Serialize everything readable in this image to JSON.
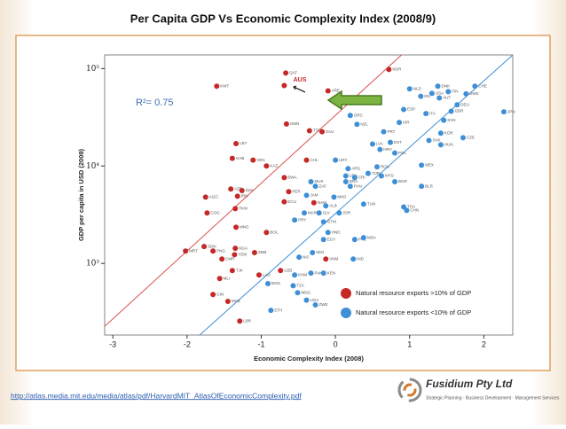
{
  "chart_data": {
    "type": "scatter",
    "title": "Per Capita GDP Vs Economic Complexity Index (2008/9)",
    "x_label": "Economic Complexity Index (2008)",
    "y_label": "GDP per capita in USD (2009)",
    "xlim": [
      -3.11,
      2.39
    ],
    "xticks": [
      -3,
      -2,
      -1,
      0,
      1,
      2
    ],
    "ylim": [
      184,
      138000
    ],
    "log_y": true,
    "yticks": [
      {
        "value": 1000,
        "label": "10³"
      },
      {
        "value": 10000,
        "label": "10⁴"
      },
      {
        "value": 100000,
        "label": "10⁵"
      }
    ],
    "legend": "lower right",
    "series": [
      {
        "name": "Natural resource exports >10% of GDP",
        "color": "#c62828",
        "labels": [
          "QAT",
          "NOR",
          "KWT",
          null,
          "ARE",
          "OMN",
          "TTO",
          "SAU",
          "LBY",
          "GAB",
          "VEN",
          "CHL",
          "KAZ",
          "AZE",
          "DZA",
          "IRN",
          "BWA",
          "PER",
          "ECU",
          "NAM",
          "AGO",
          "TKM",
          "COG",
          "MNG",
          "BOL",
          "SDN",
          "PNG",
          "NGA",
          "ZMB",
          "YEM",
          "MRT",
          "CMR",
          "TJK",
          "MLI",
          "LAO",
          "UZB",
          "VNM",
          "GIN",
          "MOZ",
          "LBR"
        ],
        "x": [
          -0.67,
          0.72,
          -1.6,
          -0.69,
          -0.1,
          -0.66,
          -0.35,
          -0.18,
          -1.34,
          -1.39,
          -1.11,
          -0.39,
          -0.93,
          -1.41,
          -1.26,
          -1.32,
          -0.69,
          -0.63,
          -0.69,
          -0.29,
          -1.75,
          -1.35,
          -1.73,
          -1.34,
          -0.93,
          -1.77,
          -1.65,
          -1.35,
          -1.09,
          -1.36,
          -2.02,
          -1.53,
          -1.39,
          -1.56,
          -1.03,
          -0.74,
          -0.13,
          -1.65,
          -1.45,
          -1.29
        ],
        "values": [
          90000,
          98000,
          66000,
          67000,
          59000,
          27000,
          23000,
          22500,
          17000,
          12000,
          11500,
          11500,
          10000,
          5800,
          5600,
          4900,
          7600,
          5450,
          4300,
          4200,
          4800,
          3650,
          3300,
          2350,
          2080,
          1490,
          1340,
          1430,
          1290,
          1230,
          1340,
          1110,
          845,
          700,
          760,
          845,
          1110,
          480,
          408,
          256
        ]
      },
      {
        "name": "Natural resource exports <10% of GDP",
        "color": "#3f8fd6",
        "labels": [
          "CHE",
          "DNK",
          "SWE",
          "JPN",
          "DEU",
          "USA",
          "FIN",
          "NLD",
          "AUT",
          "IRL",
          "GBR",
          "CAN",
          "ITA",
          "ESP",
          "GRC",
          "NZL",
          "ISR",
          "SVN",
          "PRT",
          "KOR",
          "CZE",
          "SVK",
          "HUN",
          "EST",
          "LVA",
          "POL",
          "HRV",
          "ARG",
          "URY",
          "MEX",
          "LBN",
          "TUR",
          "MYS",
          "BRA",
          "PAN",
          "ROU",
          "BGR",
          "BLR",
          "MUS",
          "CRI",
          "ZAF",
          "JAM",
          "THA",
          "CHN",
          "MKD",
          "ALB",
          "JOR",
          "TUN",
          "EGY",
          "SLV",
          "GTM",
          "PRY",
          "MAR",
          "HND",
          "PHL",
          "IND",
          "MDA",
          "NIC",
          "PAK",
          "SEN",
          "KHM",
          "TZA",
          "KEN",
          "UGA",
          "MDG",
          "ZWE",
          "ETH",
          "BGD"
        ],
        "x": [
          1.88,
          1.38,
          1.76,
          2.27,
          1.64,
          1.3,
          1.52,
          1.0,
          1.4,
          1.15,
          1.56,
          0.26,
          1.22,
          0.92,
          0.2,
          0.29,
          0.86,
          1.46,
          0.65,
          1.42,
          1.72,
          1.26,
          1.42,
          0.74,
          0.5,
          0.8,
          0.6,
          0.17,
          0.0,
          1.16,
          0.14,
          0.44,
          0.62,
          0.14,
          0.2,
          0.56,
          0.8,
          1.16,
          -0.33,
          0.26,
          -0.27,
          -0.39,
          0.92,
          0.96,
          -0.02,
          -0.13,
          0.05,
          0.38,
          -0.16,
          -0.22,
          -0.16,
          -0.55,
          -0.42,
          -0.1,
          0.26,
          0.24,
          0.38,
          -0.49,
          -0.33,
          -0.31,
          -0.55,
          -0.57,
          -0.16,
          -0.39,
          -0.51,
          -0.27,
          -0.87,
          -0.91
        ],
        "values": [
          66000,
          66000,
          55000,
          36000,
          42500,
          55600,
          58000,
          62000,
          50000,
          52000,
          36500,
          48000,
          34500,
          38000,
          33000,
          26800,
          28000,
          29500,
          22500,
          21700,
          19500,
          18300,
          16500,
          17500,
          16800,
          13600,
          14800,
          9400,
          11500,
          10200,
          7900,
          8400,
          7900,
          6900,
          6200,
          9800,
          6900,
          6200,
          6900,
          7600,
          6200,
          5000,
          3800,
          3500,
          4800,
          3900,
          3300,
          4060,
          1760,
          3300,
          2670,
          2790,
          3300,
          2080,
          1760,
          1110,
          1840,
          1160,
          795,
          1290,
          760,
          590,
          795,
          420,
          500,
          375,
          330,
          620
        ]
      }
    ],
    "trendlines": [
      {
        "color": "#d9534f",
        "x": [
          -3.11,
          0.89
        ],
        "values": [
          226,
          138000
        ]
      },
      {
        "color": "#3f8fd6",
        "x": [
          -1.83,
          2.39
        ],
        "values": [
          184,
          138000
        ]
      }
    ],
    "annotations": {
      "r_squared": "R²= 0.75",
      "highlight": "AUS"
    }
  },
  "footer": {
    "url": "http://atlas.media.mit.edu/media/atlas/pdf/HarvardMIT_AtlasOfEconomicComplexity.pdf",
    "company": "Fusidium Pty Ltd",
    "tagline": "Strategic Planning · Business Development · Management Services"
  }
}
